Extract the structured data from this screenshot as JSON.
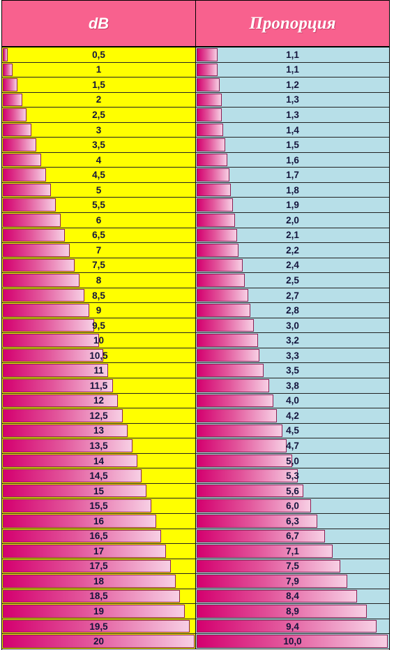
{
  "header": {
    "db_label": "dB",
    "ratio_label": "Пропорция"
  },
  "colors": {
    "header_bg": "#f8618e",
    "db_column_bg": "#ffff00",
    "ratio_column_bg": "#b7dfe8",
    "bar_start": "#d4006f",
    "bar_end": "#f7cfe4"
  },
  "bar_max": {
    "db": 20,
    "ratio": 10.0
  },
  "rows": [
    {
      "db_text": "0,5",
      "db": 0.5,
      "ratio_text": "1,1",
      "ratio": 1.1
    },
    {
      "db_text": "1",
      "db": 1,
      "ratio_text": "1,1",
      "ratio": 1.1
    },
    {
      "db_text": "1,5",
      "db": 1.5,
      "ratio_text": "1,2",
      "ratio": 1.2
    },
    {
      "db_text": "2",
      "db": 2,
      "ratio_text": "1,3",
      "ratio": 1.3
    },
    {
      "db_text": "2,5",
      "db": 2.5,
      "ratio_text": "1,3",
      "ratio": 1.3
    },
    {
      "db_text": "3",
      "db": 3,
      "ratio_text": "1,4",
      "ratio": 1.4
    },
    {
      "db_text": "3,5",
      "db": 3.5,
      "ratio_text": "1,5",
      "ratio": 1.5
    },
    {
      "db_text": "4",
      "db": 4,
      "ratio_text": "1,6",
      "ratio": 1.6
    },
    {
      "db_text": "4,5",
      "db": 4.5,
      "ratio_text": "1,7",
      "ratio": 1.7
    },
    {
      "db_text": "5",
      "db": 5,
      "ratio_text": "1,8",
      "ratio": 1.8
    },
    {
      "db_text": "5,5",
      "db": 5.5,
      "ratio_text": "1,9",
      "ratio": 1.9
    },
    {
      "db_text": "6",
      "db": 6,
      "ratio_text": "2,0",
      "ratio": 2.0
    },
    {
      "db_text": "6,5",
      "db": 6.5,
      "ratio_text": "2,1",
      "ratio": 2.1
    },
    {
      "db_text": "7",
      "db": 7,
      "ratio_text": "2,2",
      "ratio": 2.2
    },
    {
      "db_text": "7,5",
      "db": 7.5,
      "ratio_text": "2,4",
      "ratio": 2.4
    },
    {
      "db_text": "8",
      "db": 8,
      "ratio_text": "2,5",
      "ratio": 2.5
    },
    {
      "db_text": "8,5",
      "db": 8.5,
      "ratio_text": "2,7",
      "ratio": 2.7
    },
    {
      "db_text": "9",
      "db": 9,
      "ratio_text": "2,8",
      "ratio": 2.8
    },
    {
      "db_text": "9,5",
      "db": 9.5,
      "ratio_text": "3,0",
      "ratio": 3.0
    },
    {
      "db_text": "10",
      "db": 10,
      "ratio_text": "3,2",
      "ratio": 3.2
    },
    {
      "db_text": "10,5",
      "db": 10.5,
      "ratio_text": "3,3",
      "ratio": 3.3
    },
    {
      "db_text": "11",
      "db": 11,
      "ratio_text": "3,5",
      "ratio": 3.5
    },
    {
      "db_text": "11,5",
      "db": 11.5,
      "ratio_text": "3,8",
      "ratio": 3.8
    },
    {
      "db_text": "12",
      "db": 12,
      "ratio_text": "4,0",
      "ratio": 4.0
    },
    {
      "db_text": "12,5",
      "db": 12.5,
      "ratio_text": "4,2",
      "ratio": 4.2
    },
    {
      "db_text": "13",
      "db": 13,
      "ratio_text": "4,5",
      "ratio": 4.5
    },
    {
      "db_text": "13,5",
      "db": 13.5,
      "ratio_text": "4,7",
      "ratio": 4.7
    },
    {
      "db_text": "14",
      "db": 14,
      "ratio_text": "5,0",
      "ratio": 5.0
    },
    {
      "db_text": "14,5",
      "db": 14.5,
      "ratio_text": "5,3",
      "ratio": 5.3
    },
    {
      "db_text": "15",
      "db": 15,
      "ratio_text": "5,6",
      "ratio": 5.6
    },
    {
      "db_text": "15,5",
      "db": 15.5,
      "ratio_text": "6,0",
      "ratio": 6.0
    },
    {
      "db_text": "16",
      "db": 16,
      "ratio_text": "6,3",
      "ratio": 6.3
    },
    {
      "db_text": "16,5",
      "db": 16.5,
      "ratio_text": "6,7",
      "ratio": 6.7
    },
    {
      "db_text": "17",
      "db": 17,
      "ratio_text": "7,1",
      "ratio": 7.1
    },
    {
      "db_text": "17,5",
      "db": 17.5,
      "ratio_text": "7,5",
      "ratio": 7.5
    },
    {
      "db_text": "18",
      "db": 18,
      "ratio_text": "7,9",
      "ratio": 7.9
    },
    {
      "db_text": "18,5",
      "db": 18.5,
      "ratio_text": "8,4",
      "ratio": 8.4
    },
    {
      "db_text": "19",
      "db": 19,
      "ratio_text": "8,9",
      "ratio": 8.9
    },
    {
      "db_text": "19,5",
      "db": 19.5,
      "ratio_text": "9,4",
      "ratio": 9.4
    },
    {
      "db_text": "20",
      "db": 20,
      "ratio_text": "10,0",
      "ratio": 10.0
    }
  ]
}
